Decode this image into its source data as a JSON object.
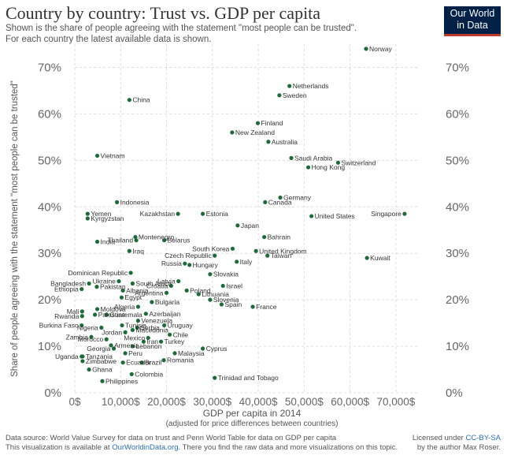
{
  "header": {
    "title": "Country by country: Trust vs. GDP per capita",
    "subtitle_line1": "Shown is the share of people agreeing with the statement \"most people can be trusted\".",
    "subtitle_line2": "For each country the latest available data is shown.",
    "logo_line1": "Our World",
    "logo_line2": "in Data"
  },
  "footer": {
    "left_line1": "Data source: World Value Survey for data on trust and Penn World Table for data on GDP per capita",
    "left_line2_prefix": "This visualization is available at ",
    "left_line2_link": "OurWorldinData.org",
    "left_line2_suffix": ". There you find the raw data and more visualizations on this topic.",
    "right_line1_prefix": "Licensed under ",
    "right_line1_link": "CC-BY-SA",
    "right_line2": "by the author Max Roser."
  },
  "colors": {
    "point": "#1e6b3a",
    "grid": "#dddddd",
    "text": "#333333",
    "axis_text": "#666666"
  },
  "chart_data": {
    "type": "scatter",
    "title": "Country by country: Trust vs. GDP per capita",
    "xlabel": "GDP per capita in 2014",
    "xlabel_note": "(adjusted for price differences between countries)",
    "ylabel": "Share of people agreeing with the statement \"most people can be trusted\"",
    "xlim": [
      0,
      75000
    ],
    "ylim": [
      0,
      75
    ],
    "x_ticks": [
      0,
      10000,
      20000,
      30000,
      40000,
      50000,
      60000,
      70000
    ],
    "x_tick_labels": [
      "0$",
      "10,000$",
      "20,000$",
      "30,000$",
      "40,000$",
      "50,000$",
      "60,000$",
      "70,000$"
    ],
    "y_ticks": [
      0,
      10,
      20,
      30,
      40,
      50,
      60,
      70
    ],
    "y_tick_labels": [
      "0%",
      "10%",
      "20%",
      "30%",
      "40%",
      "50%",
      "60%",
      "70%"
    ],
    "grid": true,
    "points": [
      {
        "name": "Norway",
        "x": 63500,
        "y": 74.0,
        "label_side": "right"
      },
      {
        "name": "Netherlands",
        "x": 46800,
        "y": 66.0,
        "label_side": "right"
      },
      {
        "name": "Sweden",
        "x": 44600,
        "y": 64.0,
        "label_side": "right"
      },
      {
        "name": "China",
        "x": 11900,
        "y": 63.0,
        "label_side": "right"
      },
      {
        "name": "Finland",
        "x": 39900,
        "y": 58.0,
        "label_side": "right"
      },
      {
        "name": "New Zealand",
        "x": 34300,
        "y": 56.0,
        "label_side": "right"
      },
      {
        "name": "Australia",
        "x": 42200,
        "y": 54.0,
        "label_side": "right"
      },
      {
        "name": "Vietnam",
        "x": 4900,
        "y": 51.0,
        "label_side": "right"
      },
      {
        "name": "Saudi Arabia",
        "x": 47200,
        "y": 50.5,
        "label_side": "right"
      },
      {
        "name": "Switzerland",
        "x": 57400,
        "y": 49.5,
        "label_side": "right"
      },
      {
        "name": "Hong Kong",
        "x": 50900,
        "y": 48.5,
        "label_side": "right"
      },
      {
        "name": "Germany",
        "x": 44800,
        "y": 42.0,
        "label_side": "right"
      },
      {
        "name": "Canada",
        "x": 41500,
        "y": 41.0,
        "label_side": "right"
      },
      {
        "name": "Indonesia",
        "x": 9200,
        "y": 41.0,
        "label_side": "right"
      },
      {
        "name": "Kazakhstan",
        "x": 22500,
        "y": 38.5,
        "label_side": "left"
      },
      {
        "name": "Estonia",
        "x": 27900,
        "y": 38.5,
        "label_side": "right"
      },
      {
        "name": "Yemen",
        "x": 2800,
        "y": 38.5,
        "label_side": "right"
      },
      {
        "name": "United States",
        "x": 51600,
        "y": 38.0,
        "label_side": "right"
      },
      {
        "name": "Singapore",
        "x": 71900,
        "y": 38.5,
        "label_side": "left"
      },
      {
        "name": "Kyrgyzstan",
        "x": 2800,
        "y": 37.5,
        "label_side": "right"
      },
      {
        "name": "Japan",
        "x": 35500,
        "y": 36.0,
        "label_side": "right"
      },
      {
        "name": "Bahrain",
        "x": 41300,
        "y": 33.5,
        "label_side": "right"
      },
      {
        "name": "Montenegro",
        "x": 13200,
        "y": 33.5,
        "label_side": "right"
      },
      {
        "name": "Thailand",
        "x": 13400,
        "y": 32.8,
        "label_side": "left"
      },
      {
        "name": "Belarus",
        "x": 19500,
        "y": 32.8,
        "label_side": "right"
      },
      {
        "name": "India",
        "x": 4900,
        "y": 32.5,
        "label_side": "right"
      },
      {
        "name": "South Korea",
        "x": 34400,
        "y": 31.0,
        "label_side": "left"
      },
      {
        "name": "United Kingdom",
        "x": 39500,
        "y": 30.5,
        "label_side": "right"
      },
      {
        "name": "Czech Republic",
        "x": 30500,
        "y": 29.5,
        "label_side": "left"
      },
      {
        "name": "Iraq",
        "x": 11900,
        "y": 30.5,
        "label_side": "right"
      },
      {
        "name": "Taiwan",
        "x": 42000,
        "y": 29.5,
        "label_side": "right"
      },
      {
        "name": "Kuwait",
        "x": 63700,
        "y": 29.0,
        "label_side": "right"
      },
      {
        "name": "Italy",
        "x": 35300,
        "y": 28.2,
        "label_side": "right"
      },
      {
        "name": "Russia",
        "x": 24000,
        "y": 27.8,
        "label_side": "left"
      },
      {
        "name": "Hungary",
        "x": 25000,
        "y": 27.5,
        "label_side": "right"
      },
      {
        "name": "Dominican Republic",
        "x": 12200,
        "y": 25.8,
        "label_side": "left"
      },
      {
        "name": "Slovakia",
        "x": 29500,
        "y": 25.5,
        "label_side": "right"
      },
      {
        "name": "Ukraine",
        "x": 9600,
        "y": 24.0,
        "label_side": "left"
      },
      {
        "name": "Latvia",
        "x": 22600,
        "y": 24.0,
        "label_side": "left"
      },
      {
        "name": "Bangladesh",
        "x": 3100,
        "y": 23.5,
        "label_side": "left"
      },
      {
        "name": "South Africa",
        "x": 12600,
        "y": 23.5,
        "label_side": "right"
      },
      {
        "name": "Croatia",
        "x": 21000,
        "y": 23.0,
        "label_side": "left"
      },
      {
        "name": "Israel",
        "x": 32300,
        "y": 23.0,
        "label_side": "right"
      },
      {
        "name": "Pakistan",
        "x": 4800,
        "y": 22.8,
        "label_side": "right"
      },
      {
        "name": "Ethiopia",
        "x": 1500,
        "y": 22.3,
        "label_side": "left"
      },
      {
        "name": "Albania",
        "x": 10500,
        "y": 22.0,
        "label_side": "right"
      },
      {
        "name": "Poland",
        "x": 24400,
        "y": 22.0,
        "label_side": "right"
      },
      {
        "name": "Argentina",
        "x": 20000,
        "y": 21.5,
        "label_side": "left"
      },
      {
        "name": "Lithuania",
        "x": 27000,
        "y": 21.2,
        "label_side": "right"
      },
      {
        "name": "Egypt",
        "x": 10200,
        "y": 20.5,
        "label_side": "right"
      },
      {
        "name": "Slovenia",
        "x": 29500,
        "y": 20.0,
        "label_side": "right"
      },
      {
        "name": "Bulgaria",
        "x": 16800,
        "y": 19.5,
        "label_side": "right"
      },
      {
        "name": "Spain",
        "x": 32000,
        "y": 19.0,
        "label_side": "right"
      },
      {
        "name": "France",
        "x": 38800,
        "y": 18.5,
        "label_side": "right"
      },
      {
        "name": "Algeria",
        "x": 13800,
        "y": 18.5,
        "label_side": "left"
      },
      {
        "name": "Moldova",
        "x": 4900,
        "y": 18.0,
        "label_side": "right"
      },
      {
        "name": "Mali",
        "x": 1600,
        "y": 17.5,
        "label_side": "left"
      },
      {
        "name": "Azerbaijan",
        "x": 15500,
        "y": 17.0,
        "label_side": "right"
      },
      {
        "name": "Rwanda",
        "x": 1600,
        "y": 16.5,
        "label_side": "left"
      },
      {
        "name": "Palestine",
        "x": 4400,
        "y": 16.8,
        "label_side": "right"
      },
      {
        "name": "Guatemala",
        "x": 6900,
        "y": 16.8,
        "label_side": "right"
      },
      {
        "name": "Venezuela",
        "x": 13800,
        "y": 15.5,
        "label_side": "right"
      },
      {
        "name": "Burkina Faso",
        "x": 1500,
        "y": 14.5,
        "label_side": "left"
      },
      {
        "name": "Nigeria",
        "x": 5800,
        "y": 14.0,
        "label_side": "left"
      },
      {
        "name": "Tunisia",
        "x": 10300,
        "y": 14.5,
        "label_side": "right"
      },
      {
        "name": "Uruguay",
        "x": 19500,
        "y": 14.5,
        "label_side": "right"
      },
      {
        "name": "Serbia",
        "x": 13600,
        "y": 14.0,
        "label_side": "right"
      },
      {
        "name": "Macedonia",
        "x": 12600,
        "y": 13.5,
        "label_side": "right"
      },
      {
        "name": "Jordan",
        "x": 11000,
        "y": 13.0,
        "label_side": "left"
      },
      {
        "name": "Chile",
        "x": 20700,
        "y": 12.5,
        "label_side": "right"
      },
      {
        "name": "Zambia",
        "x": 3600,
        "y": 12.0,
        "label_side": "left"
      },
      {
        "name": "Morocco",
        "x": 6900,
        "y": 11.5,
        "label_side": "left"
      },
      {
        "name": "Mexico",
        "x": 16000,
        "y": 11.8,
        "label_side": "left"
      },
      {
        "name": "Turkey",
        "x": 18800,
        "y": 11.0,
        "label_side": "right"
      },
      {
        "name": "Iran",
        "x": 15000,
        "y": 11.0,
        "label_side": "right"
      },
      {
        "name": "Armenia",
        "x": 7900,
        "y": 10.2,
        "label_side": "right"
      },
      {
        "name": "Lebanon",
        "x": 12600,
        "y": 10.0,
        "label_side": "right"
      },
      {
        "name": "Georgia",
        "x": 8500,
        "y": 9.5,
        "label_side": "left"
      },
      {
        "name": "Cyprus",
        "x": 27900,
        "y": 9.5,
        "label_side": "right"
      },
      {
        "name": "Malaysia",
        "x": 21800,
        "y": 8.5,
        "label_side": "right"
      },
      {
        "name": "Peru",
        "x": 11000,
        "y": 8.5,
        "label_side": "right"
      },
      {
        "name": "Uganda",
        "x": 1500,
        "y": 7.8,
        "label_side": "left"
      },
      {
        "name": "Tanzania",
        "x": 1700,
        "y": 7.8,
        "label_side": "right"
      },
      {
        "name": "Romania",
        "x": 19400,
        "y": 7.0,
        "label_side": "right"
      },
      {
        "name": "Zimbabwe",
        "x": 1700,
        "y": 6.8,
        "label_side": "right"
      },
      {
        "name": "Ecuador",
        "x": 10500,
        "y": 6.5,
        "label_side": "right"
      },
      {
        "name": "Brazil",
        "x": 14600,
        "y": 6.5,
        "label_side": "right"
      },
      {
        "name": "Ghana",
        "x": 3100,
        "y": 5.0,
        "label_side": "right"
      },
      {
        "name": "Colombia",
        "x": 12400,
        "y": 4.0,
        "label_side": "right"
      },
      {
        "name": "Trinidad and Tobago",
        "x": 30500,
        "y": 3.2,
        "label_side": "right"
      },
      {
        "name": "Philippines",
        "x": 6000,
        "y": 2.5,
        "label_side": "right"
      }
    ]
  }
}
